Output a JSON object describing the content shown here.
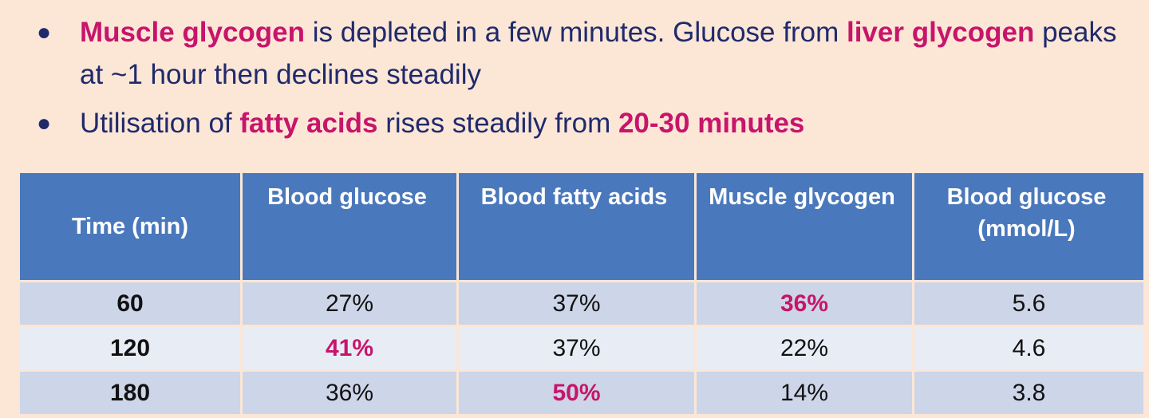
{
  "bullets": [
    {
      "parts": [
        {
          "text": "Muscle glycogen",
          "highlight": true
        },
        {
          "text": " is depleted in a few minutes. Glucose from ",
          "highlight": false
        },
        {
          "text": "liver glycogen",
          "highlight": true
        },
        {
          "text": " peaks at ~1 hour then declines steadily",
          "highlight": false
        }
      ]
    },
    {
      "parts": [
        {
          "text": "Utilisation of ",
          "highlight": false
        },
        {
          "text": "fatty acids",
          "highlight": true
        },
        {
          "text": " rises steadily from ",
          "highlight": false
        },
        {
          "text": "20-30 minutes",
          "highlight": true
        }
      ]
    }
  ],
  "table": {
    "headers": [
      "Time (min)",
      "Blood glucose",
      "Blood fatty acids",
      "Muscle glycogen",
      "Blood glucose (mmol/L)"
    ],
    "rows": [
      {
        "time": "60",
        "blood_glucose": "27%",
        "blood_fatty_acids": "37%",
        "muscle_glycogen": "36%",
        "blood_glucose_mmol": "5.6",
        "peak": "muscle_glycogen"
      },
      {
        "time": "120",
        "blood_glucose": "41%",
        "blood_fatty_acids": "37%",
        "muscle_glycogen": "22%",
        "blood_glucose_mmol": "4.6",
        "peak": "blood_glucose"
      },
      {
        "time": "180",
        "blood_glucose": "36%",
        "blood_fatty_acids": "50%",
        "muscle_glycogen": "14%",
        "blood_glucose_mmol": "3.8",
        "peak": "blood_fatty_acids"
      }
    ]
  },
  "colors": {
    "background": "#FCE6D6",
    "body_text": "#1F2A6B",
    "highlight": "#C6156B",
    "header_bg": "#4A78BC",
    "row_odd": "#CDD5E8",
    "row_even": "#E8ECF5"
  }
}
